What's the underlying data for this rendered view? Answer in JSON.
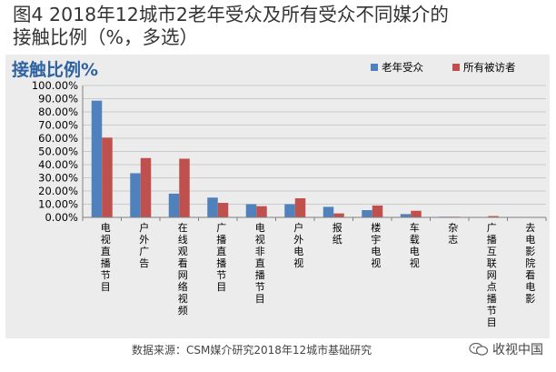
{
  "figure": {
    "title": "图4  2018年12城市2老年受众及所有受众不同媒介的\n接触比例（%，多选）",
    "source": "数据来源：CSM媒介研究2018年12城市基础研究",
    "watermark": "收视中国",
    "watermark_icon": "wechat-logo-icon"
  },
  "colors": {
    "panel_bg": "#ececec",
    "series_elderly": "#4f81bd",
    "series_all": "#c0504d",
    "heading": "#2e62a2"
  },
  "chart_data": {
    "type": "bar",
    "title": "接触比例%",
    "xlabel": "",
    "ylabel": "",
    "ylim": [
      0,
      100
    ],
    "y_ticks": [
      "0.00%",
      "10.00%",
      "20.00%",
      "30.00%",
      "40.00%",
      "50.00%",
      "60.00%",
      "70.00%",
      "80.00%",
      "90.00%",
      "100.00%"
    ],
    "legend_position": "top-right",
    "categories": [
      "电视直播节目",
      "户外广告",
      "在线观看网络视频",
      "广播直播节目",
      "电视非直播节目",
      "户外电视",
      "报纸",
      "楼宇电视",
      "车载电视",
      "杂志",
      "广播互联网点播节目",
      "去电影院看电影"
    ],
    "series": [
      {
        "name": "老年受众",
        "color": "#4f81bd",
        "values": [
          88.5,
          33.5,
          18,
          15,
          10,
          10,
          8,
          5.5,
          2.5,
          0.5,
          0.3,
          0.2
        ]
      },
      {
        "name": "所有被访者",
        "color": "#c0504d",
        "values": [
          60.5,
          45,
          44.5,
          11,
          8.5,
          14.5,
          3,
          9,
          5,
          0.5,
          1,
          0.3
        ]
      }
    ]
  }
}
